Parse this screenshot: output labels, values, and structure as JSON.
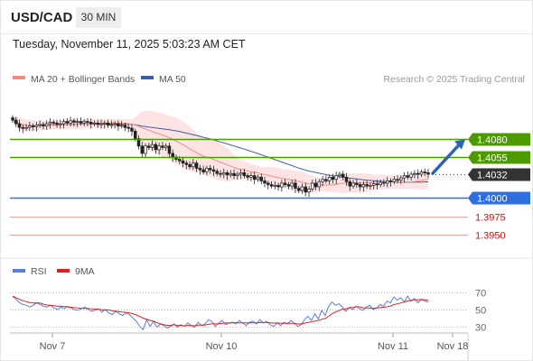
{
  "header": {
    "symbol": "USD/CAD",
    "timeframe": "30 MIN",
    "datetime": "Tuesday, November 11, 2025 5:03:23 AM CET"
  },
  "colors": {
    "ma20": "#f28b82",
    "ma50": "#3f5f9f",
    "band_fill": "#fde4e4",
    "resistance": "#4c9a00",
    "support": "#2f6fe0",
    "weak_level": "#f2a0a0",
    "current": "#333333",
    "arrow": "#2f64b4",
    "rsi": "#5b7fd6",
    "rsi_ma": "#e02020"
  },
  "chart_data": [
    {
      "type": "candlestick",
      "legend": [
        {
          "label": "MA 20 + Bollinger Bands",
          "color": "#f28b82"
        },
        {
          "label": "MA 50",
          "color": "#3f5f9f"
        }
      ],
      "legend_position": "top-left",
      "copyright": "Research © 2025 Trading Central",
      "x_ticks": [
        "Nov 7",
        "Nov 10",
        "Nov 11",
        "Nov 18"
      ],
      "price_range": [
        1.3925,
        1.415
      ],
      "levels": [
        {
          "value": 1.408,
          "label": "1.4080",
          "kind": "resistance"
        },
        {
          "value": 1.4055,
          "label": "1.4055",
          "kind": "resistance"
        },
        {
          "value": 1.4032,
          "label": "1.4032",
          "kind": "current"
        },
        {
          "value": 1.4,
          "label": "1.4000",
          "kind": "support"
        },
        {
          "value": 1.3975,
          "label": "1.3975",
          "kind": "support-weak"
        },
        {
          "value": 1.395,
          "label": "1.3950",
          "kind": "support-weak"
        }
      ],
      "forecast_arrow": {
        "direction": "up",
        "from": 1.4032,
        "to": 1.408
      },
      "close": [
        1.4105,
        1.41,
        1.4095,
        1.4094,
        1.4095,
        1.4097,
        1.4096,
        1.4098,
        1.4099,
        1.4097,
        1.41,
        1.4102,
        1.4101,
        1.4099,
        1.41,
        1.4103,
        1.4101,
        1.4104,
        1.4102,
        1.4103,
        1.4101,
        1.4103,
        1.4102,
        1.41,
        1.4101,
        1.4099,
        1.41,
        1.4101,
        1.4098,
        1.4099,
        1.41,
        1.4097,
        1.4098,
        1.4095,
        1.4094,
        1.409,
        1.408,
        1.407,
        1.406,
        1.407,
        1.4068,
        1.4072,
        1.4065,
        1.407,
        1.4068,
        1.407,
        1.406,
        1.4055,
        1.4052,
        1.405,
        1.4047,
        1.4045,
        1.4042,
        1.4047,
        1.404,
        1.4038,
        1.4035,
        1.404,
        1.4038,
        1.4036,
        1.4033,
        1.4032,
        1.4034,
        1.4031,
        1.4033,
        1.403,
        1.4032,
        1.4034,
        1.403,
        1.4028,
        1.403,
        1.4025,
        1.4028,
        1.4023,
        1.402,
        1.4018,
        1.4016,
        1.4017,
        1.4015,
        1.402,
        1.4018,
        1.4016,
        1.402,
        1.4013,
        1.401,
        1.4015,
        1.4008,
        1.4012,
        1.402,
        1.4015,
        1.4022,
        1.4025,
        1.4023,
        1.4028,
        1.4025,
        1.403,
        1.4032,
        1.4028,
        1.4022,
        1.4016,
        1.402,
        1.4018,
        1.4015,
        1.4018,
        1.4016,
        1.4017,
        1.4019,
        1.4018,
        1.4021,
        1.402,
        1.4023,
        1.4022,
        1.4025,
        1.4024,
        1.4027,
        1.403,
        1.4028,
        1.4032,
        1.4033,
        1.4032,
        1.4035,
        1.4034,
        1.4032
      ]
    },
    {
      "type": "line",
      "legend": [
        {
          "label": "RSI",
          "color": "#5b7fd6"
        },
        {
          "label": "9MA",
          "color": "#e02020"
        }
      ],
      "y_ticks": [
        70,
        50,
        30
      ],
      "ylim": [
        20,
        80
      ],
      "rsi": [
        66,
        62,
        58,
        56,
        55,
        53,
        55,
        58,
        56,
        54,
        53,
        55,
        52,
        50,
        53,
        51,
        54,
        52,
        50,
        49,
        51,
        53,
        50,
        48,
        49,
        51,
        47,
        50,
        46,
        44,
        48,
        45,
        43,
        46,
        44,
        40,
        36,
        30,
        26,
        38,
        30,
        36,
        29,
        33,
        31,
        28,
        30,
        33,
        29,
        32,
        30,
        34,
        31,
        29,
        35,
        31,
        33,
        38,
        36,
        30,
        34,
        37,
        32,
        34,
        35,
        33,
        37,
        34,
        31,
        35,
        36,
        33,
        38,
        34,
        36,
        32,
        30,
        34,
        31,
        35,
        33,
        37,
        34,
        30,
        32,
        38,
        42,
        37,
        45,
        39,
        49,
        43,
        54,
        59,
        55,
        57,
        53,
        48,
        52,
        50,
        54,
        51,
        49,
        53,
        55,
        50,
        52,
        56,
        54,
        60,
        58,
        65,
        61,
        64,
        59,
        66,
        60,
        63,
        58,
        62,
        60,
        59
      ]
    }
  ]
}
